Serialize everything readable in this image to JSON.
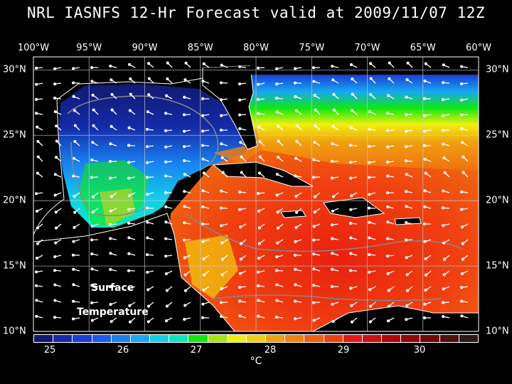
{
  "title": "NRL IASNFS  12-Hr Forecast valid at 2009/11/07 12Z",
  "map": {
    "lon_labels": [
      "100°W",
      "95°W",
      "90°W",
      "85°W",
      "80°W",
      "75°W",
      "70°W",
      "65°W",
      "60°W"
    ],
    "lat_labels": [
      "30°N",
      "25°N",
      "20°N",
      "15°N",
      "10°N"
    ],
    "lon_range": [
      -100,
      -60
    ],
    "lat_range": [
      10,
      31
    ],
    "field": "sea surface temperature",
    "vectors": "wind arrows",
    "annotation_line1": "Surface",
    "annotation_line2": "Temperature"
  },
  "colorbar": {
    "ticks": [
      "25",
      "26",
      "27",
      "28",
      "29",
      "30"
    ],
    "unit": "°C",
    "colors": [
      "#101a70",
      "#142aa8",
      "#1a3cd8",
      "#1a5af0",
      "#1a80f0",
      "#18a8f0",
      "#10d0e8",
      "#08e8c0",
      "#10e810",
      "#a0e810",
      "#f0f010",
      "#f0d010",
      "#f0a010",
      "#f08010",
      "#f06010",
      "#f04010",
      "#e81818",
      "#d01010",
      "#b00808",
      "#900808",
      "#700808",
      "#501010",
      "#301818"
    ]
  }
}
